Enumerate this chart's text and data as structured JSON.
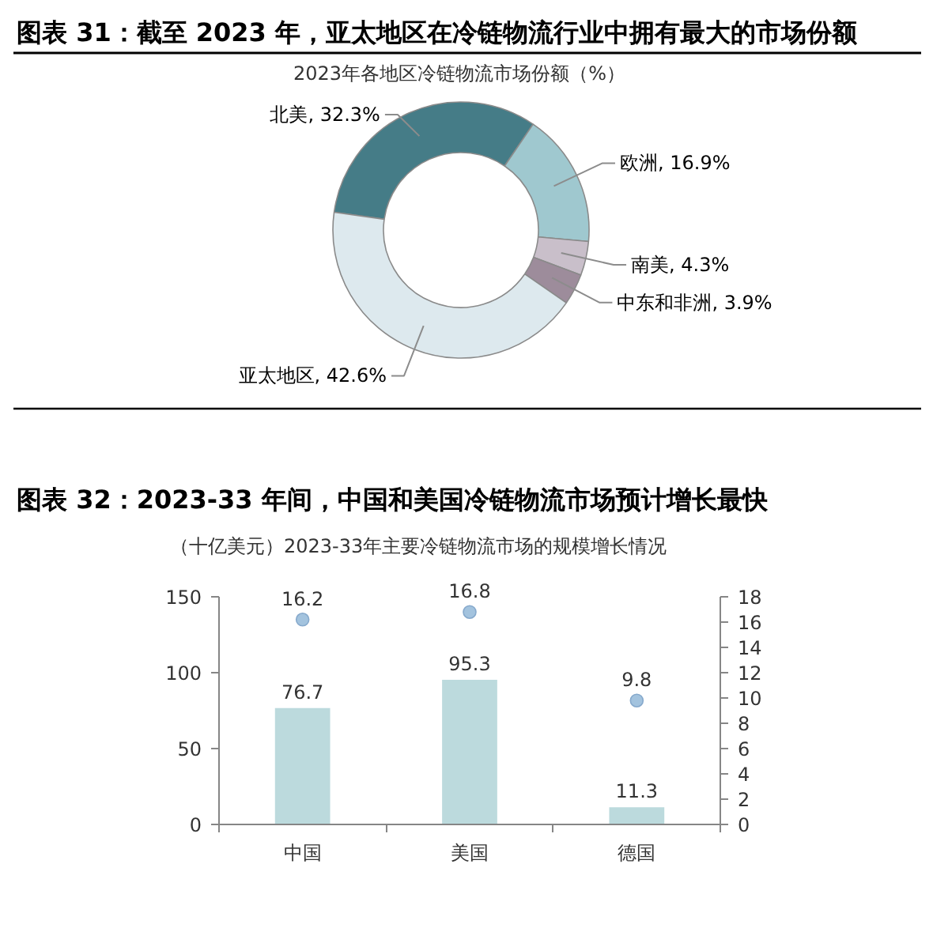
{
  "chart_data": [
    {
      "type": "donut",
      "title": "图表 31：截至 2023 年，亚太地区在冷链物流行业中拥有最大的市场份额",
      "subtitle": "2023年各地区冷链物流市场份额（%）",
      "categories": [
        "北美",
        "欧洲",
        "南美",
        "中东和非洲",
        "亚太地区"
      ],
      "values": [
        32.3,
        16.9,
        4.3,
        3.9,
        42.6
      ],
      "colors": [
        "#457c87",
        "#9fc8cf",
        "#c9bfca",
        "#9d8c9b",
        "#dde9ee"
      ],
      "value_labels": [
        "32.3%",
        "16.9%",
        "4.3%",
        "3.9%",
        "42.6%"
      ]
    },
    {
      "type": "bar",
      "title": "图表 32：2023-33 年间，中国和美国冷链物流市场预计增长最快",
      "subtitle": "（十亿美元）2023-33年主要冷链物流市场的规模增长情况",
      "categories": [
        "中国",
        "美国",
        "德国"
      ],
      "series": [
        {
          "type": "bar",
          "color": "#bcdadd",
          "values": [
            76.7,
            95.3,
            11.3
          ]
        },
        {
          "type": "scatter",
          "axis": "y2",
          "color": "#a3c3de",
          "values": [
            16.2,
            16.8,
            9.8
          ]
        }
      ],
      "ylim": [
        0,
        150
      ],
      "yticks": [
        0,
        50,
        100,
        150
      ],
      "y2lim": [
        0,
        18
      ],
      "y2ticks": [
        0,
        2,
        4,
        6,
        8,
        10,
        12,
        14,
        16,
        18
      ],
      "data_labels": true,
      "marker": "circle"
    }
  ]
}
